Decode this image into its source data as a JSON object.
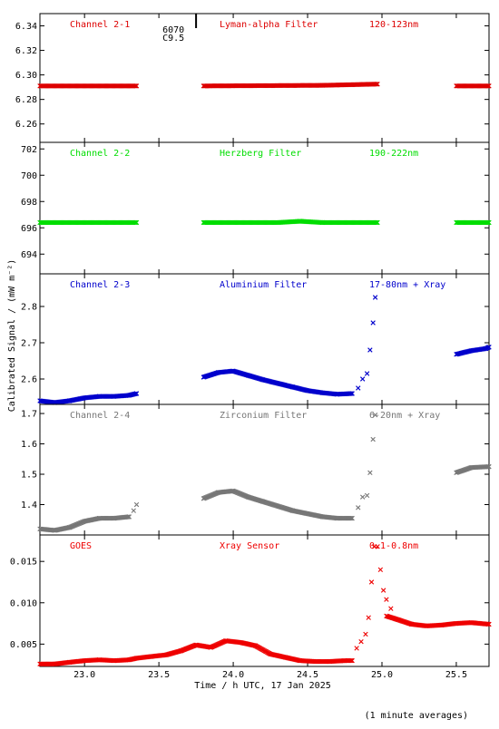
{
  "chart_data": {
    "type": "scatter",
    "xlabel": "Time / h UTC, 17 Jan 2025",
    "ylabel": "Calibrated Signal / (mW m⁻²)",
    "footnote": "(1 minute averages)",
    "xlim": [
      22.7,
      25.72
    ],
    "xticks": [
      "23.0",
      "23.5",
      "24.0",
      "24.5",
      "25.0",
      "25.5"
    ],
    "xtick_values": [
      23.0,
      23.5,
      24.0,
      24.5,
      25.0,
      25.5
    ],
    "annotation": {
      "line1": "6070",
      "line2": "C9.5",
      "x": 23.75
    },
    "panels": [
      {
        "name": "Channel 2-1",
        "filter": "Lyman-alpha Filter",
        "band": "120-123nm",
        "color": "#dd0000",
        "ylim": [
          6.245,
          6.35
        ],
        "yticks": [
          "6.26",
          "6.28",
          "6.30",
          "6.32",
          "6.34"
        ],
        "ytick_values": [
          6.26,
          6.28,
          6.3,
          6.32,
          6.34
        ],
        "segments": [
          {
            "x": [
              22.7,
              23.35
            ],
            "y": [
              6.291,
              6.291
            ]
          },
          {
            "x": [
              23.8,
              24.6,
              24.97
            ],
            "y": [
              6.291,
              6.2915,
              6.2925
            ]
          },
          {
            "x": [
              25.5,
              25.72
            ],
            "y": [
              6.291,
              6.291
            ]
          }
        ]
      },
      {
        "name": "Channel 2-2",
        "filter": "Herzberg Filter",
        "band": "190-222nm",
        "color": "#00dd00",
        "ylim": [
          692.5,
          702.5
        ],
        "yticks": [
          "694",
          "696",
          "698",
          "700",
          "702"
        ],
        "ytick_values": [
          694,
          696,
          698,
          700,
          702
        ],
        "segments": [
          {
            "x": [
              22.7,
              23.35
            ],
            "y": [
              696.4,
              696.4
            ]
          },
          {
            "x": [
              23.8,
              24.3,
              24.45,
              24.6,
              24.97
            ],
            "y": [
              696.4,
              696.4,
              696.5,
              696.4,
              696.4
            ]
          },
          {
            "x": [
              25.5,
              25.72
            ],
            "y": [
              696.4,
              696.4
            ]
          }
        ]
      },
      {
        "name": "Channel 2-3",
        "filter": "Aluminium Filter",
        "band": "17-80nm + Xray",
        "color": "#0000cc",
        "ylim": [
          2.53,
          2.89
        ],
        "yticks": [
          "2.6",
          "2.7",
          "2.8"
        ],
        "ytick_values": [
          2.6,
          2.7,
          2.8
        ],
        "segments": [
          {
            "x": [
              22.7,
              22.8,
              22.9,
              23.0,
              23.1,
              23.2,
              23.3,
              23.35
            ],
            "y": [
              2.54,
              2.535,
              2.54,
              2.548,
              2.552,
              2.552,
              2.555,
              2.56
            ]
          },
          {
            "x": [
              23.8,
              23.9,
              24.0,
              24.1,
              24.2,
              24.3,
              24.4,
              24.5,
              24.6,
              24.7,
              24.8
            ],
            "y": [
              2.605,
              2.618,
              2.622,
              2.61,
              2.598,
              2.588,
              2.578,
              2.568,
              2.562,
              2.558,
              2.56
            ]
          }
        ],
        "points": [
          [
            24.84,
            2.575
          ],
          [
            24.87,
            2.6
          ],
          [
            24.9,
            2.615
          ],
          [
            24.92,
            2.68
          ],
          [
            24.94,
            2.755
          ],
          [
            24.955,
            2.825
          ]
        ],
        "segments2": [
          {
            "x": [
              25.5,
              25.6,
              25.7,
              25.72
            ],
            "y": [
              2.668,
              2.678,
              2.684,
              2.688
            ]
          }
        ]
      },
      {
        "name": "Channel 2-4",
        "filter": "Zirconium Filter",
        "band": "6-20nm + Xray",
        "color": "#777777",
        "ylim": [
          1.3,
          1.73
        ],
        "yticks": [
          "1.4",
          "1.5",
          "1.6",
          "1.7"
        ],
        "ytick_values": [
          1.4,
          1.5,
          1.6,
          1.7
        ],
        "segments": [
          {
            "x": [
              22.7,
              22.8,
              22.9,
              23.0,
              23.1,
              23.2,
              23.3
            ],
            "y": [
              1.32,
              1.315,
              1.325,
              1.345,
              1.355,
              1.355,
              1.36
            ]
          },
          {
            "x": [
              23.8,
              23.9,
              24.0,
              24.1,
              24.2,
              24.3,
              24.4,
              24.5,
              24.6,
              24.7,
              24.8
            ],
            "y": [
              1.42,
              1.44,
              1.445,
              1.425,
              1.41,
              1.395,
              1.38,
              1.37,
              1.36,
              1.355,
              1.355
            ]
          }
        ],
        "points": [
          [
            23.33,
            1.38
          ],
          [
            23.35,
            1.4
          ],
          [
            24.84,
            1.39
          ],
          [
            24.87,
            1.425
          ],
          [
            24.9,
            1.43
          ],
          [
            24.92,
            1.505
          ],
          [
            24.94,
            1.615
          ],
          [
            24.955,
            1.695
          ]
        ],
        "segments2": [
          {
            "x": [
              25.5,
              25.6,
              25.72
            ],
            "y": [
              1.505,
              1.522,
              1.525
            ]
          }
        ]
      },
      {
        "name": "GOES",
        "filter": "Xray Sensor",
        "band": "0.1-0.8nm",
        "color": "#ee0000",
        "ylim": [
          0.0023,
          0.0182
        ],
        "yticks": [
          "0.005",
          "0.010",
          "0.015"
        ],
        "ytick_values": [
          0.005,
          0.01,
          0.015
        ],
        "segments": [
          {
            "x": [
              22.7,
              22.8,
              22.9,
              23.0,
              23.1,
              23.2,
              23.3,
              23.35,
              23.45,
              23.55,
              23.65,
              23.75,
              23.85,
              23.95,
              24.05,
              24.15,
              24.25,
              24.35,
              24.45,
              24.55,
              24.65,
              24.75,
              24.8
            ],
            "y": [
              0.0026,
              0.0026,
              0.0028,
              0.003,
              0.0031,
              0.003,
              0.0031,
              0.0033,
              0.0035,
              0.0037,
              0.0042,
              0.0049,
              0.0046,
              0.0054,
              0.0052,
              0.0048,
              0.0038,
              0.0034,
              0.003,
              0.0029,
              0.0029,
              0.003,
              0.003
            ]
          },
          {
            "x": [
              25.03,
              25.1,
              25.2,
              25.3,
              25.4,
              25.5,
              25.6,
              25.72
            ],
            "y": [
              0.0084,
              0.008,
              0.0074,
              0.0072,
              0.0073,
              0.0075,
              0.0076,
              0.0074
            ]
          }
        ],
        "points": [
          [
            24.83,
            0.0045
          ],
          [
            24.86,
            0.0053
          ],
          [
            24.89,
            0.0062
          ],
          [
            24.91,
            0.0082
          ],
          [
            24.93,
            0.0125
          ],
          [
            24.95,
            0.0168
          ],
          [
            24.97,
            0.0168
          ],
          [
            24.99,
            0.014
          ],
          [
            25.01,
            0.0115
          ],
          [
            25.03,
            0.0104
          ],
          [
            25.06,
            0.0093
          ]
        ]
      }
    ]
  }
}
